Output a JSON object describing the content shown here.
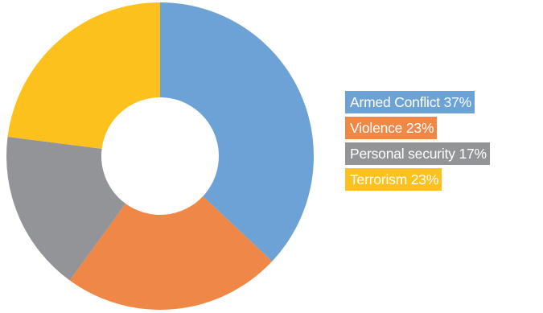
{
  "chart_data": {
    "type": "pie",
    "variant": "donut",
    "categories": [
      "Armed Conflict",
      "Violence",
      "Personal security",
      "Terrorism"
    ],
    "values": [
      37,
      23,
      17,
      23
    ],
    "unit": "%",
    "colors": [
      "#6ca2d5",
      "#ef8846",
      "#929497",
      "#fdc11d"
    ],
    "start_angle_deg": 0,
    "direction": "clockwise",
    "legend_position": "right",
    "legend": [
      {
        "label": "Armed Conflict 37%",
        "color": "#6ca2d5"
      },
      {
        "label": "Violence 23%",
        "color": "#ef8846"
      },
      {
        "label": "Personal security 17%",
        "color": "#929497"
      },
      {
        "label": "Terrorism 23%",
        "color": "#fdc11d"
      }
    ]
  }
}
